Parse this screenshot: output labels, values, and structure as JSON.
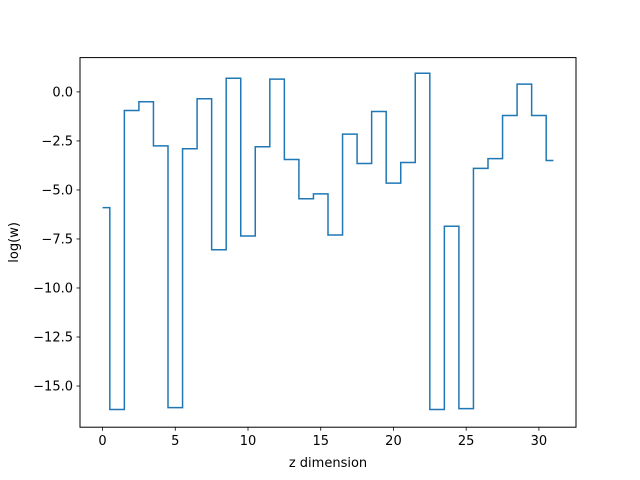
{
  "chart_data": {
    "type": "line",
    "drawstyle": "steps-mid",
    "title": "",
    "xlabel": "z dimension",
    "ylabel": "log(w)",
    "xlim": [
      -1.55,
      32.55
    ],
    "ylim": [
      -17.1,
      1.75
    ],
    "xticks": [
      0,
      5,
      10,
      15,
      20,
      25,
      30
    ],
    "xtick_labels": [
      "0",
      "5",
      "10",
      "15",
      "20",
      "25",
      "30"
    ],
    "yticks": [
      0.0,
      -2.5,
      -5.0,
      -7.5,
      -10.0,
      -12.5,
      -15.0
    ],
    "ytick_labels": [
      "0.0",
      "−2.5",
      "−5.0",
      "−7.5",
      "−10.0",
      "−12.5",
      "−15.0"
    ],
    "grid": false,
    "legend": "none",
    "series": [
      {
        "color": "#1f77b4",
        "x": [
          0,
          1,
          2,
          3,
          4,
          5,
          6,
          7,
          8,
          9,
          10,
          11,
          12,
          13,
          14,
          15,
          16,
          17,
          18,
          19,
          20,
          21,
          22,
          23,
          24,
          25,
          26,
          27,
          28,
          29,
          30,
          31
        ],
        "y": [
          -5.9,
          -16.2,
          -0.95,
          -0.5,
          -2.75,
          -16.1,
          -2.9,
          -0.35,
          -8.05,
          0.7,
          -7.35,
          -2.8,
          0.65,
          -3.45,
          -5.45,
          -5.2,
          -7.3,
          -2.15,
          -3.65,
          -1.0,
          -4.65,
          -3.6,
          0.95,
          -16.2,
          -6.85,
          -16.15,
          -3.9,
          -3.4,
          -1.2,
          0.4,
          -1.2,
          -3.5
        ]
      }
    ]
  }
}
